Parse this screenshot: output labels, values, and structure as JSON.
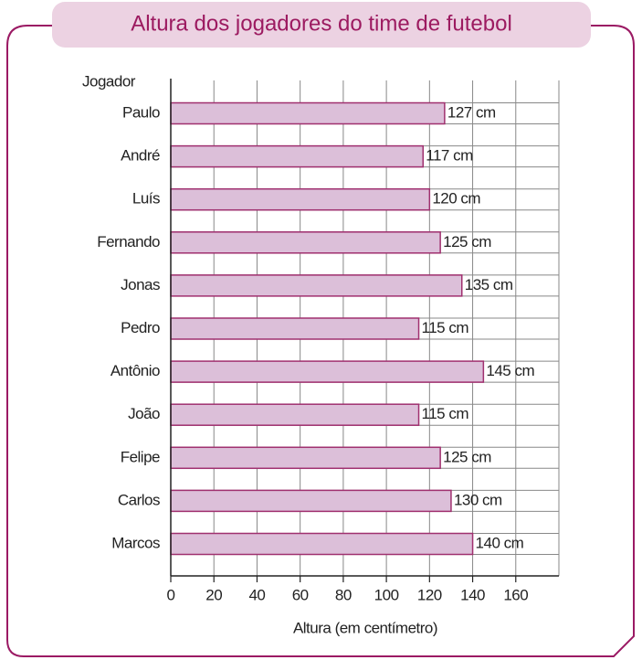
{
  "chart_data": {
    "type": "bar",
    "orientation": "horizontal",
    "title": "Altura dos jogadores do time de futebol",
    "y_label": "Jogador",
    "x_label": "Altura (em centímetro)",
    "categories": [
      "Paulo",
      "André",
      "Luís",
      "Fernando",
      "Jonas",
      "Pedro",
      "Antônio",
      "João",
      "Felipe",
      "Carlos",
      "Marcos"
    ],
    "values": [
      127,
      117,
      120,
      125,
      135,
      115,
      145,
      115,
      125,
      130,
      140
    ],
    "value_labels": [
      "127 cm",
      "117 cm",
      "120 cm",
      "125 cm",
      "135 cm",
      "115 cm",
      "145 cm",
      "115 cm",
      "125 cm",
      "130 cm",
      "140 cm"
    ],
    "color": "#dcbfd9",
    "xlim": [
      0,
      180
    ],
    "xticks": [
      0,
      20,
      40,
      60,
      80,
      100,
      120,
      140,
      160
    ],
    "grid": true
  }
}
